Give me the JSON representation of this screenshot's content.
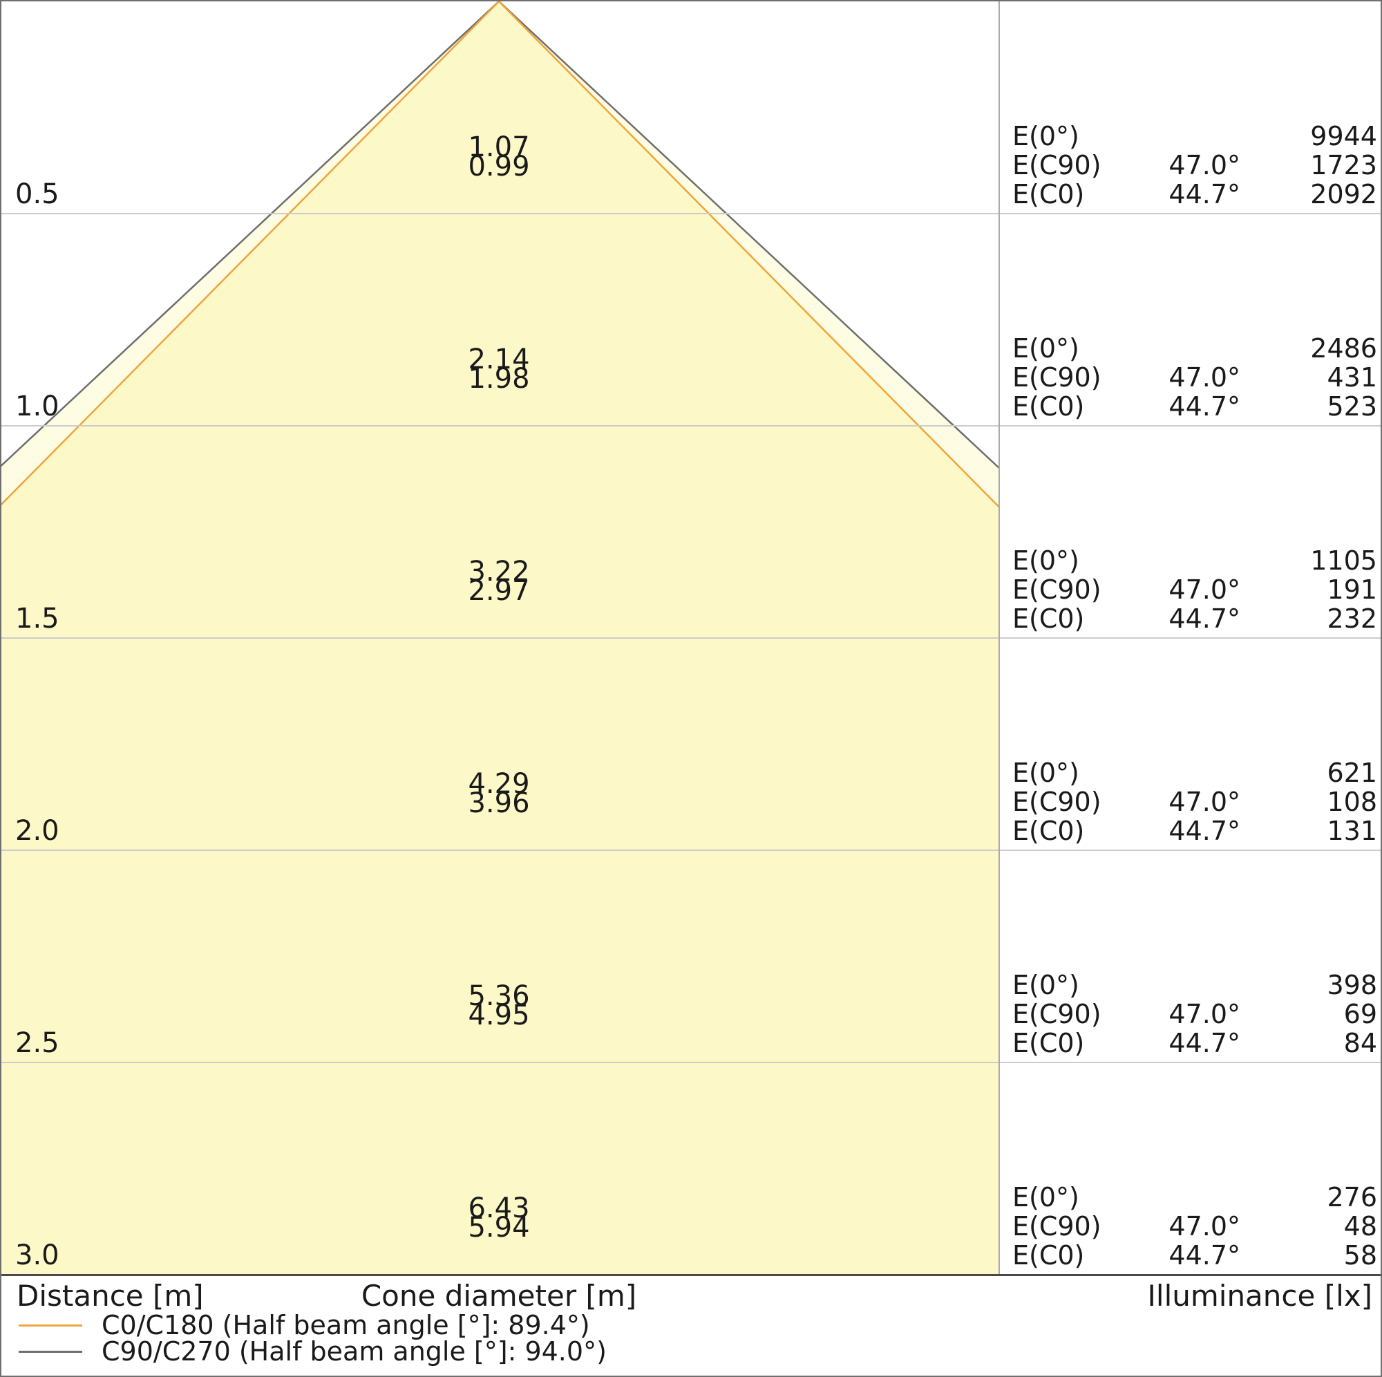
{
  "footer": {
    "distance_label": "Distance [m]",
    "cone_label": "Cone diameter [m]",
    "illuminance_label": "Illuminance [lx]"
  },
  "legend": [
    {
      "name": "C0/C180",
      "label": "C0/C180 (Half beam angle [°]: 89.4°)",
      "color": "#F0A43C",
      "half_beam_angle_deg": 89.4
    },
    {
      "name": "C90/C270",
      "label": "C90/C270 (Half beam angle [°]: 94.0°)",
      "color": "#6E6E6E",
      "half_beam_angle_deg": 94.0
    }
  ],
  "colors": {
    "fill_c90_only": "#FEFCE2",
    "fill_overlap": "#FCF8C8",
    "gridline": "#CCCCCC",
    "axis_line": "#4A4A4A",
    "separator": "#AAAAAA",
    "stroke_c0": "#F0A43C",
    "stroke_c90": "#6E6E6E"
  },
  "chart_data": {
    "type": "area",
    "description": "Luminaire light cone diagram: cone diameter and illuminance versus distance below the luminaire",
    "xlabel": "Cone diameter [m]",
    "ylabel": "Distance [m]",
    "ylim": [
      0,
      3.0
    ],
    "grid": true,
    "legend_position": "bottom-left",
    "distances_m": [
      0.5,
      1.0,
      1.5,
      2.0,
      2.5,
      3.0
    ],
    "series": [
      {
        "name": "C0/C180",
        "half_beam_angle_deg": 89.4,
        "half_angle_per_side_deg": 44.7,
        "color": "#F0A43C",
        "cone_diameter_m": [
          0.99,
          1.98,
          2.97,
          3.96,
          4.95,
          5.94
        ],
        "illuminance_lx_EC0": [
          2092,
          523,
          232,
          131,
          84,
          58
        ]
      },
      {
        "name": "C90/C270",
        "half_beam_angle_deg": 94.0,
        "half_angle_per_side_deg": 47.0,
        "color": "#6E6E6E",
        "cone_diameter_m": [
          1.07,
          2.14,
          3.22,
          4.29,
          5.36,
          6.43
        ],
        "illuminance_lx_EC90": [
          1723,
          431,
          191,
          108,
          69,
          48
        ]
      },
      {
        "name": "E(0°)",
        "illuminance_lx": [
          9944,
          2486,
          1105,
          621,
          398,
          276
        ]
      }
    ],
    "rows": [
      {
        "distance_m": 0.5,
        "distance": "0.5",
        "cone_c90": "1.07",
        "cone_c0": "0.99",
        "e0_label": "E(0°)",
        "e0_angle": "",
        "e0_value": "9944",
        "ec90_label": "E(C90)",
        "ec90_angle": "47.0°",
        "ec90_value": "1723",
        "ec0_label": "E(C0)",
        "ec0_angle": "44.7°",
        "ec0_value": "2092"
      },
      {
        "distance_m": 1.0,
        "distance": "1.0",
        "cone_c90": "2.14",
        "cone_c0": "1.98",
        "e0_label": "E(0°)",
        "e0_angle": "",
        "e0_value": "2486",
        "ec90_label": "E(C90)",
        "ec90_angle": "47.0°",
        "ec90_value": "431",
        "ec0_label": "E(C0)",
        "ec0_angle": "44.7°",
        "ec0_value": "523"
      },
      {
        "distance_m": 1.5,
        "distance": "1.5",
        "cone_c90": "3.22",
        "cone_c0": "2.97",
        "e0_label": "E(0°)",
        "e0_angle": "",
        "e0_value": "1105",
        "ec90_label": "E(C90)",
        "ec90_angle": "47.0°",
        "ec90_value": "191",
        "ec0_label": "E(C0)",
        "ec0_angle": "44.7°",
        "ec0_value": "232"
      },
      {
        "distance_m": 2.0,
        "distance": "2.0",
        "cone_c90": "4.29",
        "cone_c0": "3.96",
        "e0_label": "E(0°)",
        "e0_angle": "",
        "e0_value": "621",
        "ec90_label": "E(C90)",
        "ec90_angle": "47.0°",
        "ec90_value": "108",
        "ec0_label": "E(C0)",
        "ec0_angle": "44.7°",
        "ec0_value": "131"
      },
      {
        "distance_m": 2.5,
        "distance": "2.5",
        "cone_c90": "5.36",
        "cone_c0": "4.95",
        "e0_label": "E(0°)",
        "e0_angle": "",
        "e0_value": "398",
        "ec90_label": "E(C90)",
        "ec90_angle": "47.0°",
        "ec90_value": "69",
        "ec0_label": "E(C0)",
        "ec0_angle": "44.7°",
        "ec0_value": "84"
      },
      {
        "distance_m": 3.0,
        "distance": "3.0",
        "cone_c90": "6.43",
        "cone_c0": "5.94",
        "e0_label": "E(0°)",
        "e0_angle": "",
        "e0_value": "276",
        "ec90_label": "E(C90)",
        "ec90_angle": "47.0°",
        "ec90_value": "48",
        "ec0_label": "E(C0)",
        "ec0_angle": "44.7°",
        "ec0_value": "58"
      }
    ]
  }
}
